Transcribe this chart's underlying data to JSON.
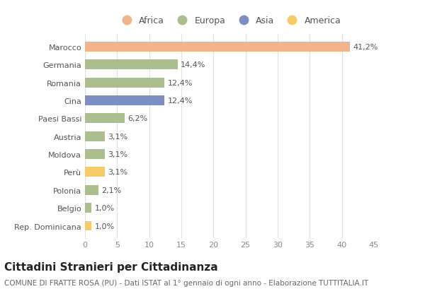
{
  "countries": [
    "Marocco",
    "Germania",
    "Romania",
    "Cina",
    "Paesi Bassi",
    "Austria",
    "Moldova",
    "Perù",
    "Polonia",
    "Belgio",
    "Rep. Dominicana"
  ],
  "values": [
    41.2,
    14.4,
    12.4,
    12.4,
    6.2,
    3.1,
    3.1,
    3.1,
    2.1,
    1.0,
    1.0
  ],
  "labels": [
    "41,2%",
    "14,4%",
    "12,4%",
    "12,4%",
    "6,2%",
    "3,1%",
    "3,1%",
    "3,1%",
    "2,1%",
    "1,0%",
    "1,0%"
  ],
  "colors": [
    "#F2B48A",
    "#ABBE90",
    "#ABBE90",
    "#7B8FC0",
    "#ABBE90",
    "#ABBE90",
    "#ABBE90",
    "#F5CB6A",
    "#ABBE90",
    "#ABBE90",
    "#F5CB6A"
  ],
  "legend_labels": [
    "Africa",
    "Europa",
    "Asia",
    "America"
  ],
  "legend_colors": [
    "#F2B48A",
    "#ABBE90",
    "#7B8FC0",
    "#F5CB6A"
  ],
  "title": "Cittadini Stranieri per Cittadinanza",
  "subtitle": "COMUNE DI FRATTE ROSA (PU) - Dati ISTAT al 1° gennaio di ogni anno - Elaborazione TUTTITALIA.IT",
  "xlim": [
    0,
    45
  ],
  "xticks": [
    0,
    5,
    10,
    15,
    20,
    25,
    30,
    35,
    40,
    45
  ],
  "background_color": "#ffffff",
  "grid_color": "#e0e0e0",
  "bar_height": 0.55,
  "title_fontsize": 11,
  "subtitle_fontsize": 7.5,
  "label_fontsize": 8,
  "tick_fontsize": 8,
  "legend_fontsize": 9
}
